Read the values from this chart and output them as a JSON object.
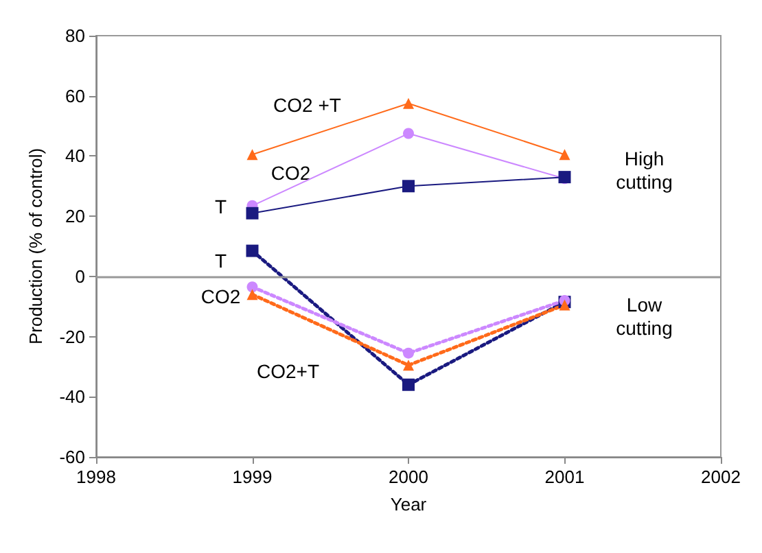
{
  "chart_data": {
    "type": "line",
    "xlabel": "Year",
    "ylabel": "Production (% of control)",
    "xlim": [
      1998,
      2002
    ],
    "xticks": [
      1998,
      1999,
      2000,
      2001,
      2002
    ],
    "ylim": [
      -60,
      80
    ],
    "yticks": [
      -60,
      -40,
      -20,
      0,
      20,
      40,
      60,
      80
    ],
    "grid": false,
    "legend": false,
    "ref_lines": [
      {
        "axis": "y",
        "value": 0,
        "color": "#999999"
      }
    ],
    "x": [
      1999,
      2000,
      2001
    ],
    "series": [
      {
        "name": "CO2 +T",
        "color": "#ff6a1a",
        "values": [
          40.5,
          57.5,
          40.5
        ],
        "marker": "triangle",
        "line_style": "solid"
      },
      {
        "name": "CO2",
        "color": "#cc88ff",
        "values": [
          23.5,
          47.5,
          32.5
        ],
        "marker": "circle",
        "line_style": "solid"
      },
      {
        "name": "T",
        "color": "#1a1a80",
        "values": [
          21,
          30,
          33
        ],
        "marker": "square",
        "line_style": "solid"
      },
      {
        "name": "T",
        "color": "#1a1a80",
        "values": [
          8.5,
          -36,
          -8.5
        ],
        "marker": "square",
        "line_style": "dotted"
      },
      {
        "name": "CO2",
        "color": "#cc88ff",
        "values": [
          -3.5,
          -25.5,
          -8
        ],
        "marker": "circle",
        "line_style": "dotted"
      },
      {
        "name": "CO2+T",
        "color": "#ff6a1a",
        "values": [
          -6,
          -29.5,
          -9.5
        ],
        "marker": "triangle",
        "line_style": "dotted"
      }
    ],
    "annotations": [
      "High\ncutting",
      "Low\ncutting"
    ]
  }
}
